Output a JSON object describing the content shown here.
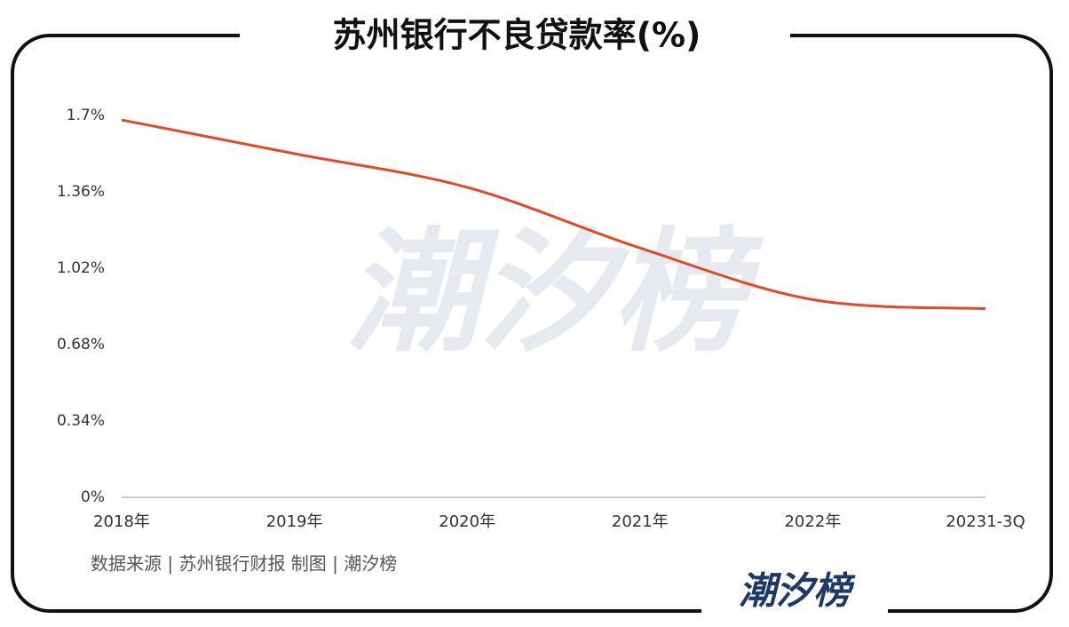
{
  "chart_data": {
    "type": "line",
    "title": "苏州银行不良贷款率(%)",
    "categories": [
      "2018年",
      "2019年",
      "2020年",
      "2021年",
      "2022年",
      "20231-3Q"
    ],
    "series": [
      {
        "name": "不良贷款率",
        "color": "#e0492a",
        "values": [
          1.68,
          1.53,
          1.38,
          1.11,
          0.88,
          0.84
        ]
      }
    ],
    "ylim": [
      0,
      1.7
    ],
    "yticks": [
      {
        "value": 0,
        "label": "0%"
      },
      {
        "value": 0.34,
        "label": "0.34%"
      },
      {
        "value": 0.68,
        "label": "0.68%"
      },
      {
        "value": 1.02,
        "label": "1.02%"
      },
      {
        "value": 1.36,
        "label": "1.36%"
      },
      {
        "value": 1.7,
        "label": "1.7%"
      }
    ],
    "grid": false,
    "source": "数据来源 | 苏州银行财报  制图 | 潮汐榜",
    "watermark": "潮汐榜",
    "logo": "潮汐榜"
  }
}
